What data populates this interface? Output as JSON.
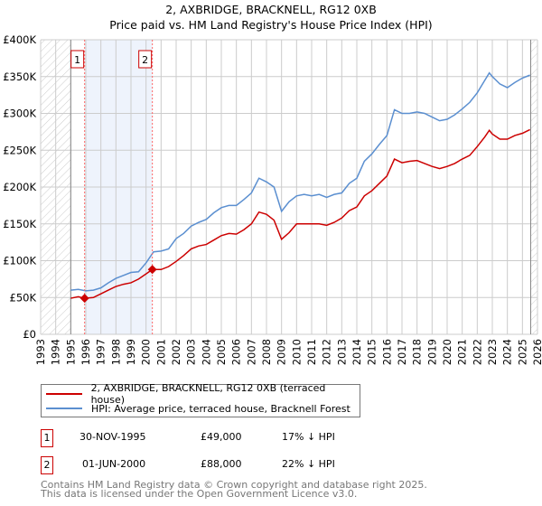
{
  "chart_data": {
    "type": "line",
    "title": "2, AXBRIDGE, BRACKNELL, RG12 0XB",
    "subtitle": "Price paid vs. HM Land Registry's House Price Index (HPI)",
    "xlabel": "",
    "ylabel": "",
    "xlim": [
      1993,
      2026
    ],
    "ylim": [
      0,
      400000
    ],
    "x_ticks": [
      "1993",
      "1994",
      "1995",
      "1996",
      "1997",
      "1998",
      "1999",
      "2000",
      "2001",
      "2002",
      "2003",
      "2004",
      "2005",
      "2006",
      "2007",
      "2008",
      "2009",
      "2010",
      "2011",
      "2012",
      "2013",
      "2014",
      "2015",
      "2016",
      "2017",
      "2018",
      "2019",
      "2020",
      "2021",
      "2022",
      "2023",
      "2024",
      "2025",
      "2026"
    ],
    "y_ticks": [
      {
        "v": 0,
        "label": "£0"
      },
      {
        "v": 50000,
        "label": "£50K"
      },
      {
        "v": 100000,
        "label": "£100K"
      },
      {
        "v": 150000,
        "label": "£150K"
      },
      {
        "v": 200000,
        "label": "£200K"
      },
      {
        "v": 250000,
        "label": "£250K"
      },
      {
        "v": 300000,
        "label": "£300K"
      },
      {
        "v": 350000,
        "label": "£350K"
      },
      {
        "v": 400000,
        "label": "£400K"
      }
    ],
    "grid": true,
    "hatched_ranges": [
      [
        1993,
        1995
      ],
      [
        2025.55,
        2026
      ]
    ],
    "shaded_range": [
      1995.92,
      2000.42
    ],
    "series": [
      {
        "name": "2, AXBRIDGE, BRACKNELL, RG12 0XB (terraced house)",
        "color": "#cc0000",
        "x": [
          1995,
          1995.5,
          1995.92,
          1996.5,
          1997,
          1997.5,
          1998,
          1998.5,
          1999,
          1999.5,
          2000,
          2000.42,
          2001,
          2001.5,
          2002,
          2002.5,
          2003,
          2003.5,
          2004,
          2004.5,
          2005,
          2005.5,
          2006,
          2006.5,
          2007,
          2007.5,
          2008,
          2008.5,
          2009,
          2009.5,
          2010,
          2010.5,
          2011,
          2011.5,
          2012,
          2012.5,
          2013,
          2013.5,
          2014,
          2014.5,
          2015,
          2015.5,
          2016,
          2016.5,
          2017,
          2017.5,
          2018,
          2018.5,
          2019,
          2019.5,
          2020,
          2020.5,
          2021,
          2021.5,
          2022,
          2022.5,
          2022.8,
          2023,
          2023.5,
          2024,
          2024.5,
          2025,
          2025.5
        ],
        "y": [
          49000,
          51000,
          49000,
          50000,
          55000,
          60000,
          65000,
          68000,
          70000,
          75000,
          82000,
          88000,
          88000,
          92000,
          99000,
          107000,
          116000,
          120000,
          122000,
          128000,
          134000,
          137000,
          136000,
          142000,
          150000,
          166000,
          163000,
          155000,
          129000,
          138000,
          150000,
          150000,
          150000,
          150000,
          148000,
          152000,
          158000,
          168000,
          173000,
          188000,
          195000,
          205000,
          215000,
          238000,
          233000,
          235000,
          236000,
          232000,
          228000,
          225000,
          228000,
          232000,
          238000,
          243000,
          255000,
          268000,
          277000,
          272000,
          265000,
          265000,
          270000,
          273000,
          278000
        ]
      },
      {
        "name": "HPI: Average price, terraced house, Bracknell Forest",
        "color": "#5b8fd0",
        "x": [
          1995,
          1995.5,
          1996,
          1996.5,
          1997,
          1997.5,
          1998,
          1998.5,
          1999,
          1999.5,
          2000,
          2000.5,
          2001,
          2001.5,
          2002,
          2002.5,
          2003,
          2003.5,
          2004,
          2004.5,
          2005,
          2005.5,
          2006,
          2006.5,
          2007,
          2007.5,
          2008,
          2008.5,
          2009,
          2009.5,
          2010,
          2010.5,
          2011,
          2011.5,
          2012,
          2012.5,
          2013,
          2013.5,
          2014,
          2014.5,
          2015,
          2015.5,
          2016,
          2016.5,
          2017,
          2017.5,
          2018,
          2018.5,
          2019,
          2019.5,
          2020,
          2020.5,
          2021,
          2021.5,
          2022,
          2022.5,
          2022.8,
          2023,
          2023.5,
          2024,
          2024.5,
          2025,
          2025.5
        ],
        "y": [
          60000,
          61000,
          59000,
          60000,
          63000,
          70000,
          76000,
          80000,
          84000,
          85000,
          97000,
          112000,
          113000,
          116000,
          130000,
          137000,
          147000,
          152000,
          156000,
          165000,
          172000,
          175000,
          175000,
          183000,
          192000,
          212000,
          207000,
          200000,
          167000,
          180000,
          188000,
          190000,
          188000,
          190000,
          186000,
          190000,
          192000,
          205000,
          212000,
          235000,
          245000,
          258000,
          270000,
          305000,
          300000,
          300000,
          302000,
          300000,
          295000,
          290000,
          292000,
          298000,
          306000,
          315000,
          328000,
          345000,
          355000,
          350000,
          340000,
          335000,
          342000,
          348000,
          352000
        ]
      }
    ],
    "annotations": [
      {
        "label": "1",
        "x": 1995.92,
        "y": 49000
      },
      {
        "label": "2",
        "x": 2000.42,
        "y": 88000
      }
    ],
    "legend_placement": "below"
  },
  "legend": {
    "items": [
      {
        "label": "2, AXBRIDGE, BRACKNELL, RG12 0XB (terraced house)",
        "color": "#cc0000"
      },
      {
        "label": "HPI: Average price, terraced house, Bracknell Forest",
        "color": "#5b8fd0"
      }
    ]
  },
  "transactions": [
    {
      "num": "1",
      "date": "30-NOV-1995",
      "price": "£49,000",
      "hpi": "17% ↓ HPI"
    },
    {
      "num": "2",
      "date": "01-JUN-2000",
      "price": "£88,000",
      "hpi": "22% ↓ HPI"
    }
  ],
  "footer": {
    "line1": "Contains HM Land Registry data © Crown copyright and database right 2025.",
    "line2": "This data is licensed under the Open Government Licence v3.0."
  }
}
